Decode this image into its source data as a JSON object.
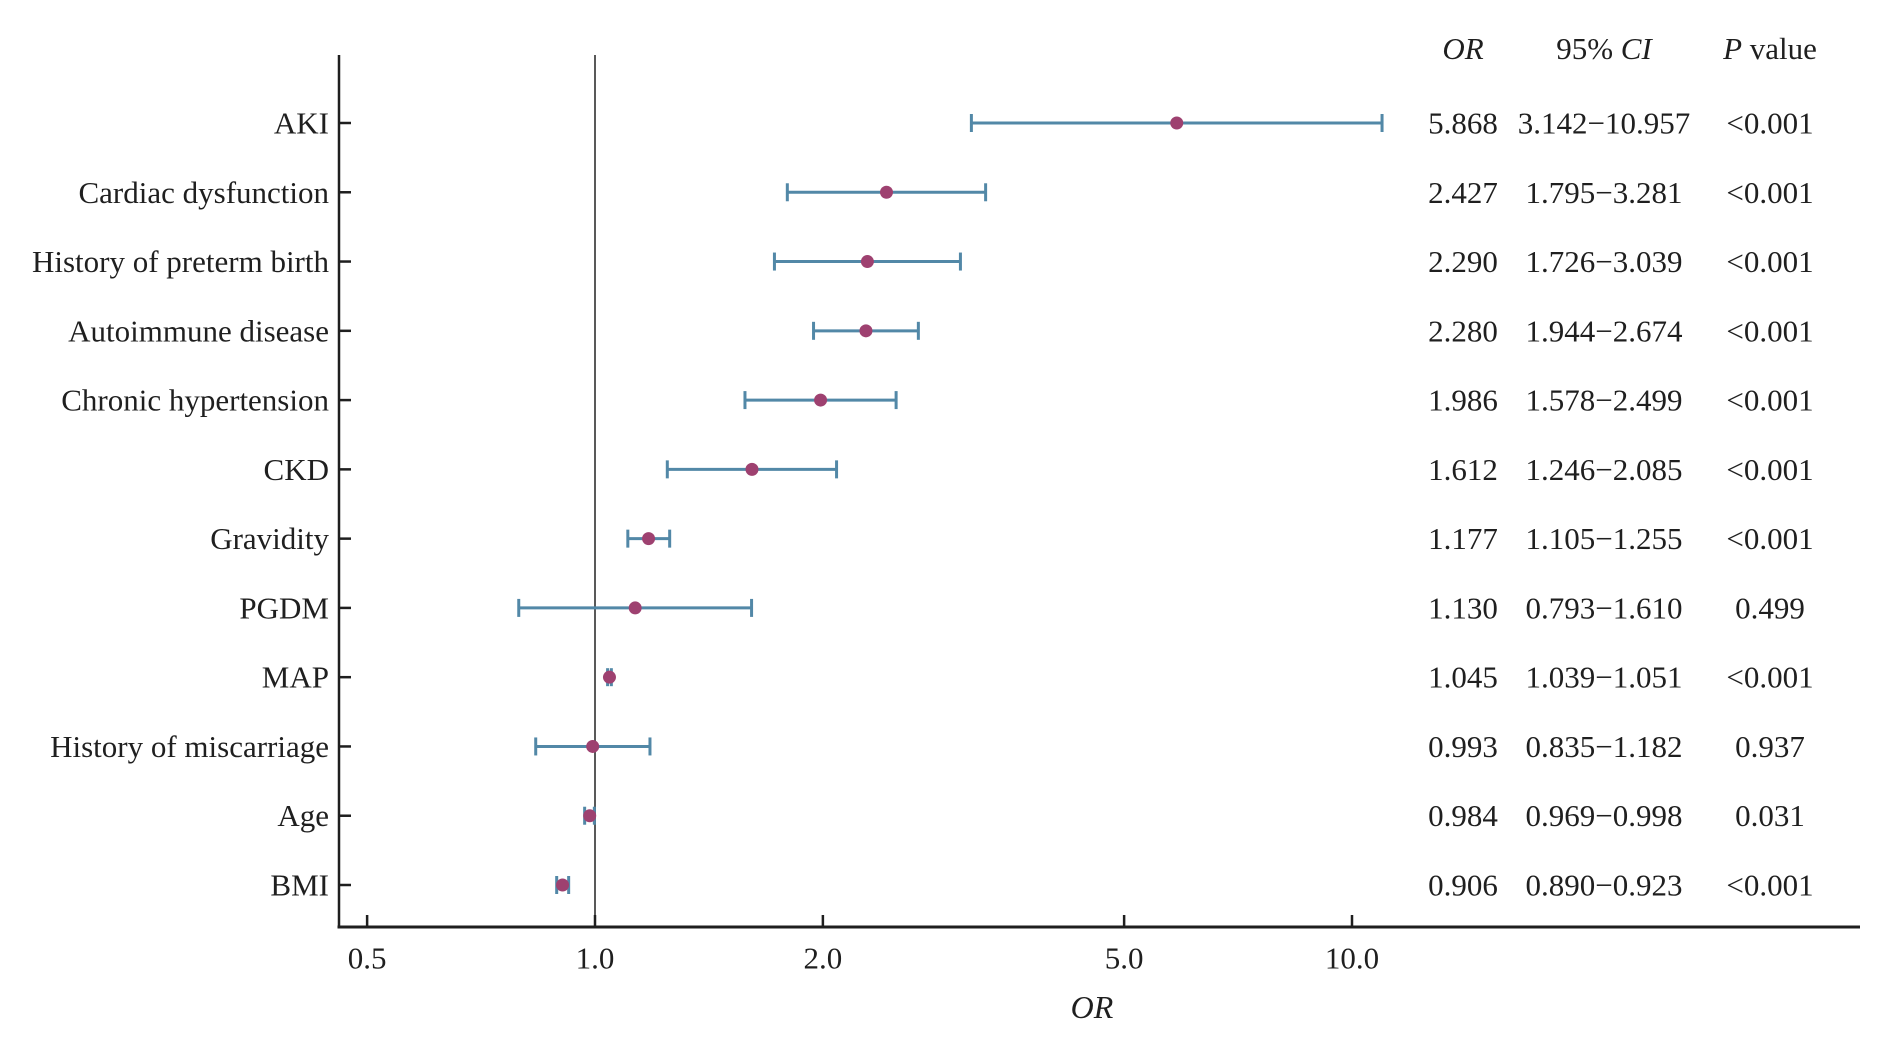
{
  "chart_data": {
    "type": "scatter",
    "variant": "forest-plot",
    "title": "",
    "xlabel": "OR",
    "x_scale": "log",
    "x_axis_range": [
      0.4,
      46
    ],
    "grid": "off",
    "legend": "none",
    "x_ticks": [
      {
        "value": 0.5,
        "label": "0.5"
      },
      {
        "value": 1.0,
        "label": "1.0"
      },
      {
        "value": 2.0,
        "label": "2.0"
      },
      {
        "value": 5.0,
        "label": "5.0"
      },
      {
        "value": 10.0,
        "label": "10.0"
      }
    ],
    "reference_line": {
      "value": 1.0
    },
    "columns": [
      {
        "key": "or",
        "label": "OR",
        "italic_part": "OR"
      },
      {
        "key": "ci",
        "label": "95% CI",
        "italic_part": "CI"
      },
      {
        "key": "p",
        "label": "P value",
        "italic_part": "P"
      }
    ],
    "rows": [
      {
        "label": "AKI",
        "or": 5.868,
        "ci_low": 3.142,
        "ci_high": 10.957,
        "or_text": "5.868",
        "ci_text": "3.142−10.957",
        "p_text": "<0.001"
      },
      {
        "label": "Cardiac dysfunction",
        "or": 2.427,
        "ci_low": 1.795,
        "ci_high": 3.281,
        "or_text": "2.427",
        "ci_text": "1.795−3.281",
        "p_text": "<0.001"
      },
      {
        "label": "History of preterm birth",
        "or": 2.29,
        "ci_low": 1.726,
        "ci_high": 3.039,
        "or_text": "2.290",
        "ci_text": "1.726−3.039",
        "p_text": "<0.001"
      },
      {
        "label": "Autoimmune disease",
        "or": 2.28,
        "ci_low": 1.944,
        "ci_high": 2.674,
        "or_text": "2.280",
        "ci_text": "1.944−2.674",
        "p_text": "<0.001"
      },
      {
        "label": "Chronic hypertension",
        "or": 1.986,
        "ci_low": 1.578,
        "ci_high": 2.499,
        "or_text": "1.986",
        "ci_text": "1.578−2.499",
        "p_text": "<0.001"
      },
      {
        "label": "CKD",
        "or": 1.612,
        "ci_low": 1.246,
        "ci_high": 2.085,
        "or_text": "1.612",
        "ci_text": "1.246−2.085",
        "p_text": "<0.001"
      },
      {
        "label": "Gravidity",
        "or": 1.177,
        "ci_low": 1.105,
        "ci_high": 1.255,
        "or_text": "1.177",
        "ci_text": "1.105−1.255",
        "p_text": "<0.001"
      },
      {
        "label": "PGDM",
        "or": 1.13,
        "ci_low": 0.793,
        "ci_high": 1.61,
        "or_text": "1.130",
        "ci_text": "0.793−1.610",
        "p_text": "0.499"
      },
      {
        "label": "MAP",
        "or": 1.045,
        "ci_low": 1.039,
        "ci_high": 1.051,
        "or_text": "1.045",
        "ci_text": "1.039−1.051",
        "p_text": "<0.001"
      },
      {
        "label": "History of miscarriage",
        "or": 0.993,
        "ci_low": 0.835,
        "ci_high": 1.182,
        "or_text": "0.993",
        "ci_text": "0.835−1.182",
        "p_text": "0.937"
      },
      {
        "label": "Age",
        "or": 0.984,
        "ci_low": 0.969,
        "ci_high": 0.998,
        "or_text": "0.984",
        "ci_text": "0.969−0.998",
        "p_text": "0.031"
      },
      {
        "label": "BMI",
        "or": 0.906,
        "ci_low": 0.89,
        "ci_high": 0.923,
        "or_text": "0.906",
        "ci_text": "0.890−0.923",
        "p_text": "<0.001"
      }
    ],
    "colors": {
      "marker": "#9e4170",
      "error_bar": "#5288a7",
      "reference_line": "#595959",
      "axis": "#1f1f1f",
      "text": "#1f1f1f",
      "background": "#ffffff"
    }
  }
}
